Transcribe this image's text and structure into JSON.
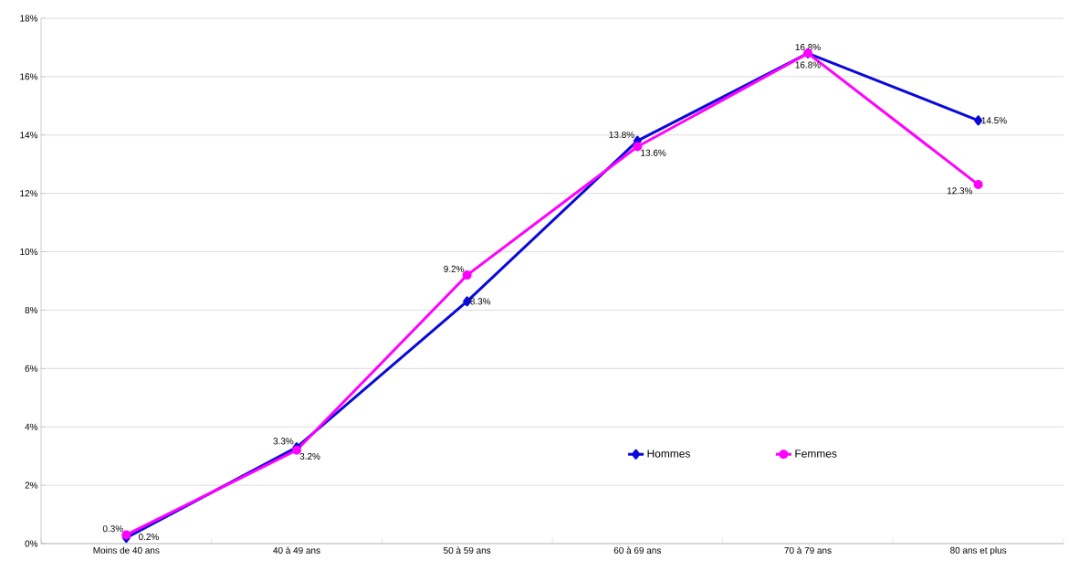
{
  "chart_data": {
    "type": "line",
    "categories": [
      "Moins de 40 ans",
      "40 à 49 ans",
      "50 à 59 ans",
      "60 à 69 ans",
      "70 à 79 ans",
      "80 ans et plus"
    ],
    "series": [
      {
        "name": "Hommes",
        "color": "#0a0ad8",
        "marker": "diamond",
        "values": [
          0.2,
          3.3,
          8.3,
          13.8,
          16.8,
          14.5
        ],
        "value_labels": [
          "0.2%",
          "3.3%",
          "8.3%",
          "13.8%",
          "16.8%",
          "14.5%"
        ]
      },
      {
        "name": "Femmes",
        "color": "#ff00ff",
        "marker": "circle",
        "values": [
          0.3,
          3.2,
          9.2,
          13.6,
          16.8,
          12.3
        ],
        "value_labels": [
          "0.3%",
          "3.2%",
          "9.2%",
          "13.6%",
          "16.8%",
          "12.3%"
        ]
      }
    ],
    "ylim": [
      0,
      18
    ],
    "yticks": [
      {
        "value": 0,
        "label": "0%"
      },
      {
        "value": 2,
        "label": "2%"
      },
      {
        "value": 4,
        "label": "4%"
      },
      {
        "value": 6,
        "label": "6%"
      },
      {
        "value": 8,
        "label": "8%"
      },
      {
        "value": 10,
        "label": "10%"
      },
      {
        "value": 12,
        "label": "12%"
      },
      {
        "value": 14,
        "label": "14%"
      },
      {
        "value": 16,
        "label": "16%"
      },
      {
        "value": 18,
        "label": "18%"
      }
    ],
    "grid": "y",
    "legend": "bottom right",
    "line_style": "solid"
  }
}
